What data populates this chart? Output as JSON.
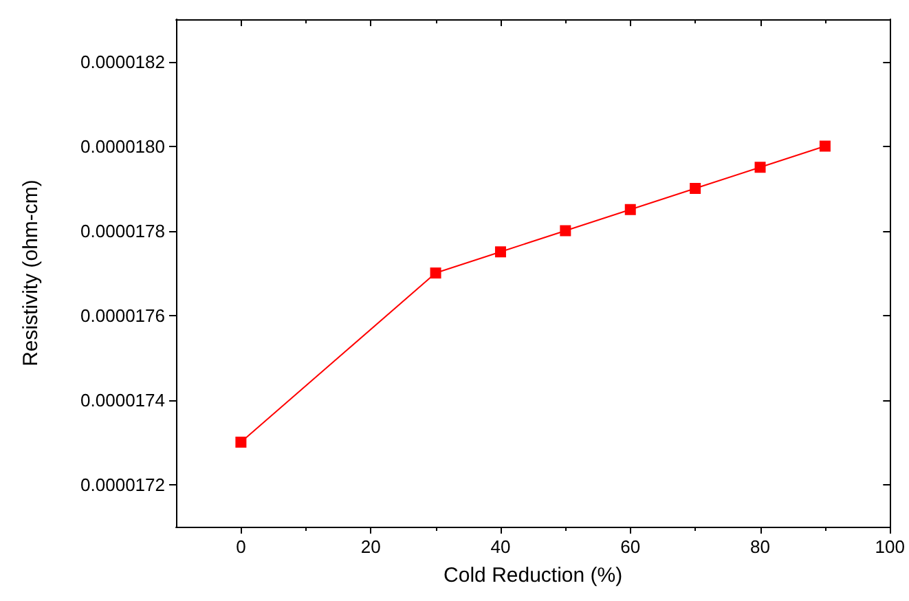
{
  "chart_data": {
    "type": "line",
    "xlabel": "Cold Reduction (%)",
    "ylabel": "Resistivity (ohm-cm)",
    "x": [
      0,
      30,
      40,
      50,
      60,
      70,
      80,
      90
    ],
    "series": [
      {
        "color": "#ff0000",
        "values": [
          1.73e-05,
          1.77e-05,
          1.775e-05,
          1.78e-05,
          1.785e-05,
          1.79e-05,
          1.795e-05,
          1.8e-05
        ]
      }
    ],
    "xlim": [
      -10,
      100
    ],
    "xticks": [
      0,
      20,
      40,
      60,
      80,
      100
    ],
    "ylim": [
      1.71e-05,
      1.83e-05
    ],
    "yticks": [
      {
        "value": 1.72e-05,
        "label": "0.0000172"
      },
      {
        "value": 1.74e-05,
        "label": "0.0000174"
      },
      {
        "value": 1.76e-05,
        "label": "0.0000176"
      },
      {
        "value": 1.78e-05,
        "label": "0.0000178"
      },
      {
        "value": 1.8e-05,
        "label": "0.0000180"
      },
      {
        "value": 1.82e-05,
        "label": "0.0000182"
      }
    ],
    "marker": "square",
    "line_style": "solid",
    "grid": false
  }
}
